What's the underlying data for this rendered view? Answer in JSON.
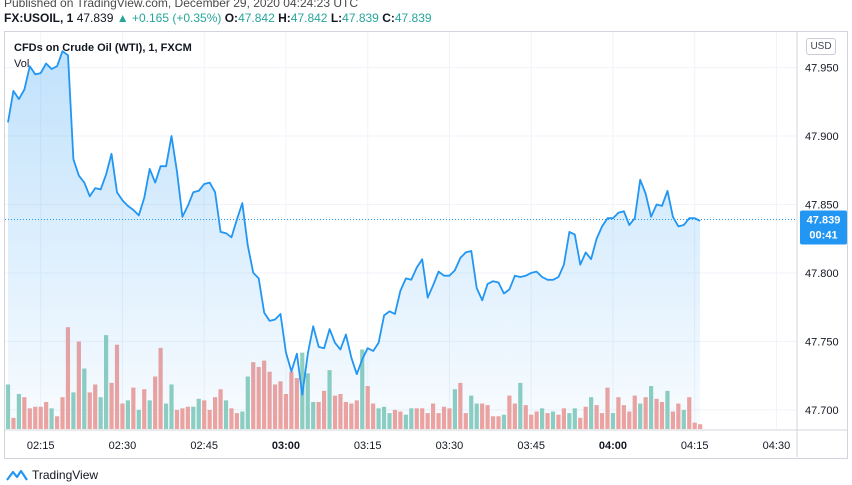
{
  "header": {
    "published": "Published on TradingView.com, December 29, 2020 04:24:23 UTC",
    "symbol": "FX:USOIL, 1",
    "last": "47.839",
    "arrow": "▲",
    "change": "+0.165 (+0.35%)",
    "o_label": "O:",
    "o_value": "47.842",
    "h_label": "H:",
    "h_value": "47.842",
    "l_label": "L:",
    "l_value": "47.839",
    "c_label": "C:",
    "c_value": "47.839"
  },
  "legend": {
    "title": "CFDs on Crude Oil (WTI), 1, FXCM",
    "vol_label": "Vol"
  },
  "currency_button": "USD",
  "price_tag": {
    "value": "47.839",
    "countdown": "00:41"
  },
  "footer": {
    "brand": "TradingView"
  },
  "colors": {
    "line": "#2196f3",
    "up_volume": "#8fcfc0",
    "down_volume": "#f2a39e",
    "tag": "#2196f3"
  },
  "chart_data": {
    "type": "area",
    "title": "CFDs on Crude Oil (WTI), 1, FXCM",
    "x_unit": "minutes",
    "x_start": "02:09",
    "x_tick_labels": [
      "02:15",
      "02:30",
      "02:45",
      "03:00",
      "03:15",
      "03:30",
      "03:45",
      "04:00",
      "04:15",
      "04:30"
    ],
    "x_tick_minutes": [
      6,
      21,
      36,
      51,
      66,
      81,
      96,
      111,
      126,
      141
    ],
    "y_tick_labels": [
      "47.950",
      "47.900",
      "47.850",
      "47.800",
      "47.750",
      "47.700"
    ],
    "ylim": [
      47.686,
      47.976
    ],
    "grid": true,
    "price_series": [
      [
        0,
        47.91
      ],
      [
        1,
        47.933
      ],
      [
        2,
        47.927
      ],
      [
        3,
        47.934
      ],
      [
        4,
        47.951
      ],
      [
        5,
        47.945
      ],
      [
        6,
        47.946
      ],
      [
        7,
        47.953
      ],
      [
        8,
        47.949
      ],
      [
        9,
        47.951
      ],
      [
        10,
        47.962
      ],
      [
        11,
        47.959
      ],
      [
        12,
        47.883
      ],
      [
        13,
        47.871
      ],
      [
        14,
        47.866
      ],
      [
        15,
        47.856
      ],
      [
        16,
        47.862
      ],
      [
        17,
        47.861
      ],
      [
        18,
        47.872
      ],
      [
        19,
        47.887
      ],
      [
        20,
        47.859
      ],
      [
        21,
        47.853
      ],
      [
        22,
        47.849
      ],
      [
        23,
        47.846
      ],
      [
        24,
        47.842
      ],
      [
        25,
        47.855
      ],
      [
        26,
        47.876
      ],
      [
        27,
        47.866
      ],
      [
        28,
        47.878
      ],
      [
        29,
        47.878
      ],
      [
        30,
        47.9
      ],
      [
        31,
        47.874
      ],
      [
        32,
        47.841
      ],
      [
        33,
        47.849
      ],
      [
        34,
        47.859
      ],
      [
        35,
        47.86
      ],
      [
        36,
        47.865
      ],
      [
        37,
        47.866
      ],
      [
        38,
        47.859
      ],
      [
        39,
        47.83
      ],
      [
        40,
        47.829
      ],
      [
        41,
        47.826
      ],
      [
        42,
        47.839
      ],
      [
        43,
        47.851
      ],
      [
        44,
        47.82
      ],
      [
        45,
        47.8
      ],
      [
        46,
        47.796
      ],
      [
        47,
        47.771
      ],
      [
        48,
        47.765
      ],
      [
        49,
        47.766
      ],
      [
        50,
        47.77
      ],
      [
        51,
        47.742
      ],
      [
        52,
        47.728
      ],
      [
        53,
        47.741
      ],
      [
        54,
        47.711
      ],
      [
        55,
        47.741
      ],
      [
        56,
        47.761
      ],
      [
        57,
        47.746
      ],
      [
        58,
        47.745
      ],
      [
        59,
        47.759
      ],
      [
        60,
        47.749
      ],
      [
        61,
        47.744
      ],
      [
        62,
        47.755
      ],
      [
        63,
        47.738
      ],
      [
        64,
        47.726
      ],
      [
        65,
        47.737
      ],
      [
        66,
        47.745
      ],
      [
        67,
        47.743
      ],
      [
        68,
        47.749
      ],
      [
        69,
        47.769
      ],
      [
        70,
        47.772
      ],
      [
        71,
        47.77
      ],
      [
        72,
        47.787
      ],
      [
        73,
        47.796
      ],
      [
        74,
        47.795
      ],
      [
        75,
        47.804
      ],
      [
        76,
        47.81
      ],
      [
        77,
        47.782
      ],
      [
        78,
        47.791
      ],
      [
        79,
        47.801
      ],
      [
        80,
        47.798
      ],
      [
        81,
        47.798
      ],
      [
        82,
        47.802
      ],
      [
        83,
        47.811
      ],
      [
        84,
        47.815
      ],
      [
        85,
        47.816
      ],
      [
        86,
        47.789
      ],
      [
        87,
        47.78
      ],
      [
        88,
        47.792
      ],
      [
        89,
        47.794
      ],
      [
        90,
        47.793
      ],
      [
        91,
        47.785
      ],
      [
        92,
        47.788
      ],
      [
        93,
        47.798
      ],
      [
        94,
        47.797
      ],
      [
        95,
        47.798
      ],
      [
        96,
        47.8
      ],
      [
        97,
        47.801
      ],
      [
        98,
        47.797
      ],
      [
        99,
        47.795
      ],
      [
        100,
        47.795
      ],
      [
        101,
        47.797
      ],
      [
        102,
        47.806
      ],
      [
        103,
        47.83
      ],
      [
        104,
        47.828
      ],
      [
        105,
        47.806
      ],
      [
        106,
        47.815
      ],
      [
        107,
        47.81
      ],
      [
        108,
        47.825
      ],
      [
        109,
        47.834
      ],
      [
        110,
        47.84
      ],
      [
        111,
        47.84
      ],
      [
        112,
        47.844
      ],
      [
        113,
        47.845
      ],
      [
        114,
        47.835
      ],
      [
        115,
        47.84
      ],
      [
        116,
        47.868
      ],
      [
        117,
        47.858
      ],
      [
        118,
        47.841
      ],
      [
        119,
        47.85
      ],
      [
        120,
        47.849
      ],
      [
        121,
        47.86
      ],
      [
        122,
        47.841
      ],
      [
        123,
        47.834
      ],
      [
        124,
        47.835
      ],
      [
        125,
        47.84
      ],
      [
        126,
        47.84
      ],
      [
        127,
        47.838
      ]
    ],
    "volume_series": {
      "values": [
        0.28,
        0.07,
        0.22,
        0.2,
        0.13,
        0.14,
        0.14,
        0.17,
        0.13,
        0.08,
        0.2,
        0.64,
        0.23,
        0.55,
        0.38,
        0.23,
        0.28,
        0.2,
        0.59,
        0.29,
        0.53,
        0.16,
        0.18,
        0.26,
        0.12,
        0.25,
        0.18,
        0.33,
        0.51,
        0.16,
        0.28,
        0.12,
        0.13,
        0.14,
        0.14,
        0.19,
        0.18,
        0.12,
        0.2,
        0.25,
        0.18,
        0.13,
        0.1,
        0.11,
        0.33,
        0.42,
        0.39,
        0.43,
        0.36,
        0.28,
        0.3,
        0.22,
        0.36,
        0.32,
        0.48,
        0.35,
        0.17,
        0.17,
        0.24,
        0.37,
        0.21,
        0.22,
        0.17,
        0.16,
        0.18,
        0.5,
        0.27,
        0.16,
        0.13,
        0.14,
        0.1,
        0.12,
        0.11,
        0.09,
        0.13,
        0.13,
        0.13,
        0.1,
        0.16,
        0.1,
        0.14,
        0.13,
        0.25,
        0.29,
        0.1,
        0.21,
        0.16,
        0.16,
        0.15,
        0.08,
        0.08,
        0.09,
        0.21,
        0.16,
        0.29,
        0.15,
        0.09,
        0.11,
        0.13,
        0.1,
        0.11,
        0.09,
        0.13,
        0.1,
        0.13,
        0.07,
        0.14,
        0.2,
        0.15,
        0.1,
        0.26,
        0.1,
        0.2,
        0.15,
        0.11,
        0.21,
        0.16,
        0.2,
        0.27,
        0.19,
        0.17,
        0.24,
        0.11,
        0.16,
        0.12,
        0.2,
        0.04,
        0.03
      ],
      "up": [
        true,
        false,
        true,
        false,
        false,
        false,
        false,
        false,
        true,
        false,
        false,
        false,
        true,
        false,
        true,
        false,
        false,
        true,
        true,
        false,
        false,
        false,
        true,
        false,
        true,
        false,
        true,
        false,
        false,
        true,
        true,
        false,
        false,
        false,
        true,
        true,
        false,
        false,
        false,
        false,
        true,
        false,
        false,
        true,
        true,
        false,
        false,
        false,
        false,
        false,
        false,
        false,
        false,
        false,
        true,
        true,
        true,
        false,
        false,
        true,
        false,
        false,
        false,
        false,
        false,
        true,
        false,
        false,
        true,
        true,
        true,
        false,
        false,
        true,
        true,
        false,
        false,
        false,
        false,
        false,
        false,
        false,
        true,
        false,
        false,
        true,
        true,
        false,
        false,
        false,
        false,
        true,
        false,
        false,
        true,
        false,
        false,
        false,
        true,
        false,
        true,
        false,
        false,
        true,
        true,
        false,
        false,
        true,
        false,
        false,
        false,
        true,
        false,
        false,
        false,
        false,
        true,
        false,
        true,
        false,
        false,
        true,
        false,
        false,
        true,
        false,
        false,
        false
      ]
    }
  }
}
